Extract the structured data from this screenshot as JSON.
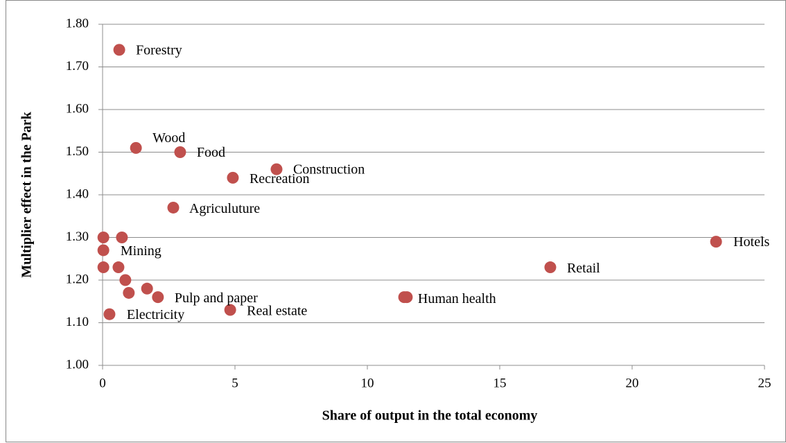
{
  "chart_data": {
    "type": "scatter",
    "x_label": "Share of output in the total economy",
    "y_label": "Multiplier effect in the Park",
    "color": "#c0504d",
    "x": [
      0.63,
      1.26,
      2.93,
      6.57,
      4.92,
      2.67,
      23.17,
      16.91,
      11.39,
      11.49,
      4.82,
      0.26,
      2.09,
      0.73,
      0.03,
      0.03,
      0.03,
      0.6,
      0.86,
      0.99,
      1.68
    ],
    "y": [
      1.74,
      1.51,
      1.5,
      1.46,
      1.44,
      1.37,
      1.29,
      1.23,
      1.16,
      1.16,
      1.13,
      1.12,
      1.16,
      1.3,
      1.3,
      1.27,
      1.23,
      1.23,
      1.2,
      1.17,
      1.18
    ],
    "labels": [
      "Forestry",
      "Wood",
      "Food",
      "Construction",
      "Recreation",
      "Agriculuture",
      "Hotels",
      "Retail",
      null,
      "Human health",
      "Real estate",
      "Electricity",
      "Pulp and paper",
      "Mining",
      null,
      null,
      null,
      null,
      null,
      null,
      null
    ],
    "xlim": [
      0,
      25
    ],
    "xticks": [
      0,
      5,
      10,
      15,
      20,
      25
    ],
    "ylim": [
      1.0,
      1.8
    ],
    "yticks": [
      {
        "value": 1.0,
        "label": "1.00"
      },
      {
        "value": 1.1,
        "label": "1.10"
      },
      {
        "value": 1.2,
        "label": "1.20"
      },
      {
        "value": 1.3,
        "label": "1.30"
      },
      {
        "value": 1.4,
        "label": "1.40"
      },
      {
        "value": 1.5,
        "label": "1.50"
      },
      {
        "value": 1.6,
        "label": "1.60"
      },
      {
        "value": 1.7,
        "label": "1.70"
      },
      {
        "value": 1.8,
        "label": "1.80"
      }
    ],
    "grid": true
  }
}
